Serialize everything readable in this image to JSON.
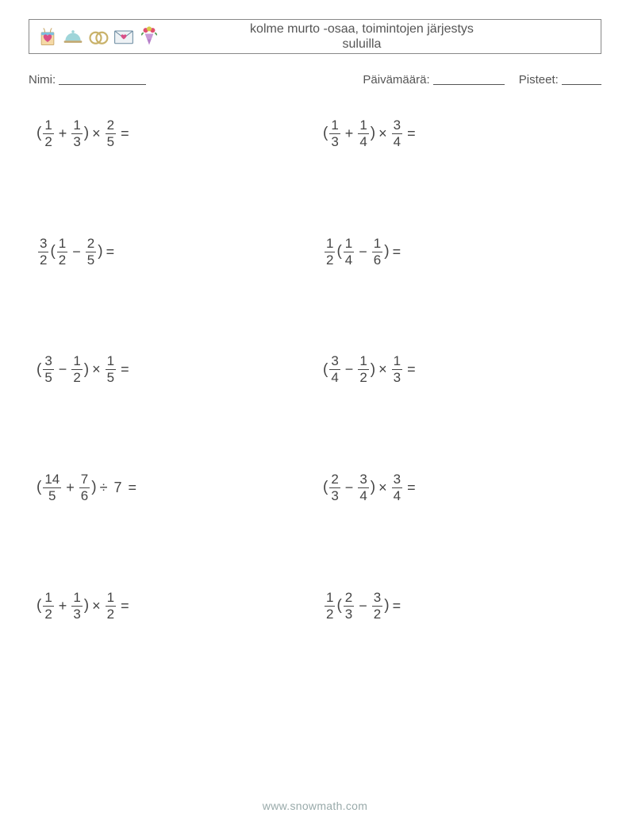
{
  "header": {
    "title_line1": "kolme murto -osaa, toimintojen järjestys",
    "title_line2": "suluilla",
    "icons": [
      {
        "name": "gift-bag-icon",
        "colors": {
          "body": "#f5d9a6",
          "accent": "#d94f87",
          "band": "#7bbfe0"
        }
      },
      {
        "name": "cloche-icon",
        "colors": {
          "body": "#9fd5d9",
          "base": "#c0a870"
        }
      },
      {
        "name": "rings-icon",
        "colors": {
          "ring": "#c9b26a"
        }
      },
      {
        "name": "love-letter-icon",
        "colors": {
          "env": "#eef2f5",
          "heart": "#d94f87",
          "stroke": "#6a8aa0"
        }
      },
      {
        "name": "bouquet-icon",
        "colors": {
          "cone": "#b57fc9",
          "f1": "#e05070",
          "f2": "#d9c84a",
          "leaf": "#5aa05a"
        }
      }
    ]
  },
  "info": {
    "name_label": "Nimi:",
    "date_label": "Päivämäärä:",
    "score_label": "Pisteet:",
    "name_underline_w": 110,
    "date_underline_w": 90,
    "score_underline_w": 50
  },
  "layout": {
    "text_color": "#464646",
    "frac_bar_color": "#444444",
    "problem_fontsize": 18
  },
  "problems": [
    {
      "tokens": [
        {
          "t": "("
        },
        {
          "f": [
            "1",
            "2"
          ]
        },
        {
          "op": "+"
        },
        {
          "f": [
            "1",
            "3"
          ]
        },
        {
          "t": ")"
        },
        {
          "op": "×"
        },
        {
          "f": [
            "2",
            "5"
          ]
        },
        {
          "eq": "="
        }
      ]
    },
    {
      "tokens": [
        {
          "t": "("
        },
        {
          "f": [
            "1",
            "3"
          ]
        },
        {
          "op": "+"
        },
        {
          "f": [
            "1",
            "4"
          ]
        },
        {
          "t": ")"
        },
        {
          "op": "×"
        },
        {
          "f": [
            "3",
            "4"
          ]
        },
        {
          "eq": "="
        }
      ]
    },
    {
      "tokens": [
        {
          "f": [
            "3",
            "2"
          ]
        },
        {
          "t": "("
        },
        {
          "f": [
            "1",
            "2"
          ]
        },
        {
          "op": "−"
        },
        {
          "f": [
            "2",
            "5"
          ]
        },
        {
          "t": ")"
        },
        {
          "eq": "="
        }
      ]
    },
    {
      "tokens": [
        {
          "f": [
            "1",
            "2"
          ]
        },
        {
          "t": "("
        },
        {
          "f": [
            "1",
            "4"
          ]
        },
        {
          "op": "−"
        },
        {
          "f": [
            "1",
            "6"
          ]
        },
        {
          "t": ")"
        },
        {
          "eq": "="
        }
      ]
    },
    {
      "tokens": [
        {
          "t": "("
        },
        {
          "f": [
            "3",
            "5"
          ]
        },
        {
          "op": "−"
        },
        {
          "f": [
            "1",
            "2"
          ]
        },
        {
          "t": ")"
        },
        {
          "op": "×"
        },
        {
          "f": [
            "1",
            "5"
          ]
        },
        {
          "eq": "="
        }
      ]
    },
    {
      "tokens": [
        {
          "t": "("
        },
        {
          "f": [
            "3",
            "4"
          ]
        },
        {
          "op": "−"
        },
        {
          "f": [
            "1",
            "2"
          ]
        },
        {
          "t": ")"
        },
        {
          "op": "×"
        },
        {
          "f": [
            "1",
            "3"
          ]
        },
        {
          "eq": "="
        }
      ]
    },
    {
      "tokens": [
        {
          "t": "("
        },
        {
          "f": [
            "14",
            "5"
          ]
        },
        {
          "op": "+"
        },
        {
          "f": [
            "7",
            "6"
          ]
        },
        {
          "t": ")"
        },
        {
          "op": "÷"
        },
        {
          "w": "7"
        },
        {
          "eq": "="
        }
      ]
    },
    {
      "tokens": [
        {
          "t": "("
        },
        {
          "f": [
            "2",
            "3"
          ]
        },
        {
          "op": "−"
        },
        {
          "f": [
            "3",
            "4"
          ]
        },
        {
          "t": ")"
        },
        {
          "op": "×"
        },
        {
          "f": [
            "3",
            "4"
          ]
        },
        {
          "eq": "="
        }
      ]
    },
    {
      "tokens": [
        {
          "t": "("
        },
        {
          "f": [
            "1",
            "2"
          ]
        },
        {
          "op": "+"
        },
        {
          "f": [
            "1",
            "3"
          ]
        },
        {
          "t": ")"
        },
        {
          "op": "×"
        },
        {
          "f": [
            "1",
            "2"
          ]
        },
        {
          "eq": "="
        }
      ]
    },
    {
      "tokens": [
        {
          "f": [
            "1",
            "2"
          ]
        },
        {
          "t": "("
        },
        {
          "f": [
            "2",
            "3"
          ]
        },
        {
          "op": "−"
        },
        {
          "f": [
            "3",
            "2"
          ]
        },
        {
          "t": ")"
        },
        {
          "eq": "="
        }
      ]
    }
  ],
  "footer": {
    "text": "www.snowmath.com"
  }
}
